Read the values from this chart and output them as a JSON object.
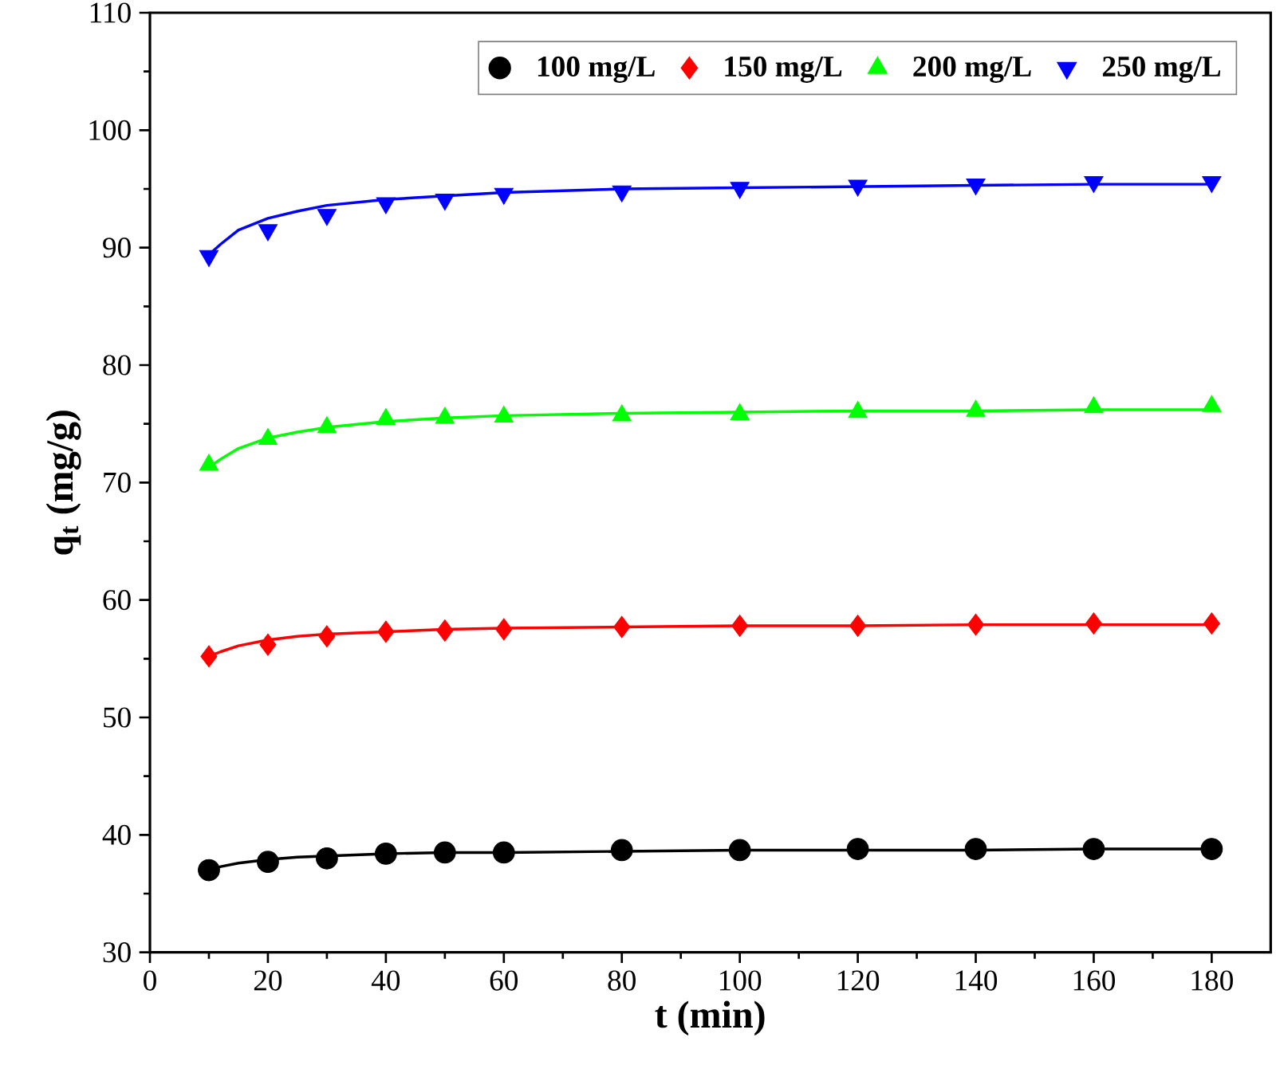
{
  "chart_data": {
    "type": "scatter",
    "xlabel": "t (min)",
    "ylabel": "q$_{t}$ (mg/g)",
    "x": [
      10,
      20,
      30,
      40,
      50,
      60,
      80,
      100,
      120,
      140,
      160,
      180
    ],
    "xlim": [
      0,
      190
    ],
    "xticks": [
      0,
      20,
      40,
      60,
      80,
      100,
      120,
      140,
      160,
      180
    ],
    "ylim": [
      30,
      110
    ],
    "yticks": [
      30,
      40,
      50,
      60,
      70,
      80,
      90,
      100,
      110
    ],
    "legend": "top right",
    "grid": false,
    "series": [
      {
        "name": "100 mg/L",
        "color": "#000000",
        "marker": "circle",
        "values": [
          37.0,
          37.7,
          38.0,
          38.4,
          38.5,
          38.5,
          38.7,
          38.7,
          38.8,
          38.8,
          38.8,
          38.8
        ]
      },
      {
        "name": "150 mg/L",
        "color": "#ff0000",
        "marker": "diamond",
        "values": [
          55.2,
          56.2,
          56.9,
          57.3,
          57.4,
          57.5,
          57.7,
          57.8,
          57.8,
          57.9,
          58.0,
          58.0
        ]
      },
      {
        "name": "200 mg/L",
        "color": "#00ff00",
        "marker": "triangle",
        "values": [
          71.5,
          73.7,
          74.7,
          75.4,
          75.5,
          75.6,
          75.7,
          75.8,
          76.0,
          76.1,
          76.4,
          76.5
        ]
      },
      {
        "name": "250 mg/L",
        "color": "#0000ff",
        "marker": "triangle-down",
        "values": [
          89.3,
          91.5,
          92.8,
          93.8,
          94.1,
          94.6,
          94.8,
          95.1,
          95.3,
          95.4,
          95.6,
          95.6
        ]
      },
      {
        "type": "line",
        "color": "#000000",
        "x": [
          10,
          12,
          15,
          20,
          25,
          30,
          40,
          50,
          60,
          80,
          100,
          120,
          140,
          160,
          180
        ],
        "values": [
          37.0,
          37.3,
          37.6,
          37.9,
          38.1,
          38.2,
          38.4,
          38.5,
          38.5,
          38.6,
          38.7,
          38.7,
          38.7,
          38.8,
          38.8
        ]
      },
      {
        "type": "line",
        "color": "#ff0000",
        "x": [
          10,
          12,
          15,
          20,
          25,
          30,
          40,
          50,
          60,
          80,
          100,
          120,
          140,
          160,
          180
        ],
        "values": [
          55.2,
          55.6,
          56.1,
          56.6,
          56.9,
          57.1,
          57.3,
          57.5,
          57.6,
          57.7,
          57.8,
          57.8,
          57.9,
          57.9,
          57.9
        ]
      },
      {
        "type": "line",
        "color": "#00ff00",
        "x": [
          10,
          12,
          15,
          20,
          25,
          30,
          40,
          50,
          60,
          80,
          100,
          120,
          140,
          160,
          180
        ],
        "values": [
          71.3,
          72.0,
          72.9,
          73.8,
          74.3,
          74.7,
          75.2,
          75.5,
          75.7,
          75.9,
          76.0,
          76.1,
          76.1,
          76.2,
          76.2
        ]
      },
      {
        "type": "line",
        "color": "#0000ff",
        "x": [
          10,
          12,
          15,
          20,
          25,
          30,
          40,
          50,
          60,
          80,
          100,
          120,
          140,
          160,
          180
        ],
        "values": [
          89.4,
          90.3,
          91.5,
          92.5,
          93.1,
          93.6,
          94.1,
          94.4,
          94.7,
          95.0,
          95.1,
          95.2,
          95.3,
          95.4,
          95.4
        ]
      }
    ]
  }
}
